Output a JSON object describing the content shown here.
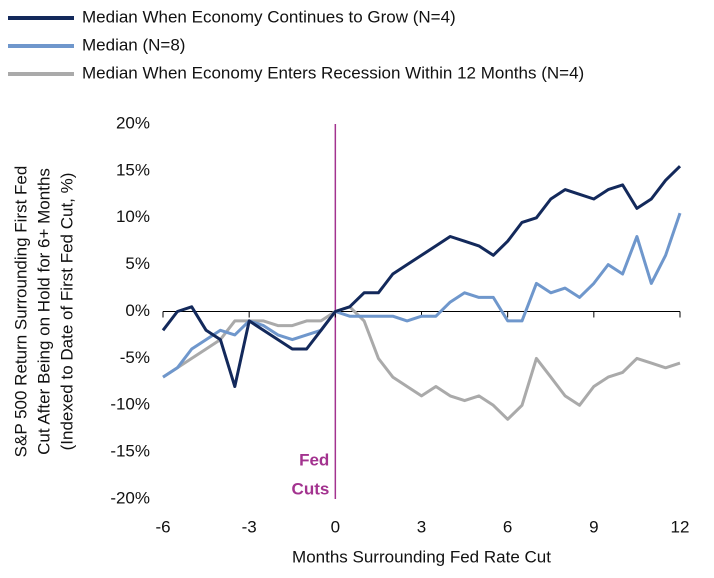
{
  "chart_data": {
    "type": "line",
    "xlabel": "Months Surrounding Fed Rate Cut",
    "ylabel": [
      "S&P 500 Return Surrounding First Fed",
      "Cut After Being on Hold for 6+ Months",
      "(Indexed to Date of First Fed Cut, %)"
    ],
    "annotation": {
      "x": 0,
      "lines": [
        "Fed",
        "Cuts"
      ],
      "color": "#a3338f"
    },
    "x": [
      -6,
      -5.5,
      -5,
      -4.5,
      -4,
      -3.5,
      -3,
      -2.5,
      -2,
      -1.5,
      -1,
      -0.5,
      0,
      0.5,
      1,
      1.5,
      2,
      2.5,
      3,
      3.5,
      4,
      4.5,
      5,
      5.5,
      6,
      6.5,
      7,
      7.5,
      8,
      8.5,
      9,
      9.5,
      10,
      10.5,
      11,
      11.5,
      12
    ],
    "series": [
      {
        "name": "Median When Economy Continues to Grow (N=4)",
        "color": "#13295b",
        "values": [
          -2,
          0,
          0.5,
          -2,
          -3,
          -8,
          -1,
          -2,
          -3,
          -4,
          -4,
          -2,
          0,
          0.5,
          2,
          2,
          4,
          5,
          6,
          7,
          8,
          7.5,
          7,
          6,
          7.5,
          9.5,
          10,
          12,
          13,
          12.5,
          12,
          13,
          13.5,
          11,
          12,
          14,
          15.5
        ]
      },
      {
        "name": "Median (N=8)",
        "color": "#6f97cc",
        "values": [
          -7,
          -6,
          -4,
          -3,
          -2,
          -2.5,
          -1,
          -1.5,
          -2.5,
          -3,
          -2.5,
          -2,
          0,
          -0.5,
          -0.5,
          -0.5,
          -0.5,
          -1,
          -0.5,
          -0.5,
          1,
          2,
          1.5,
          1.5,
          -1,
          -1,
          3,
          2,
          2.5,
          1.5,
          3,
          5,
          4,
          8,
          3,
          6,
          10.5
        ]
      },
      {
        "name": "Median When Economy Enters Recession Within 12 Months (N=4)",
        "color": "#aaaaaa",
        "values": [
          -7,
          -6,
          -5,
          -4,
          -3,
          -1,
          -1,
          -1,
          -1.5,
          -1.5,
          -1,
          -1,
          0,
          0.5,
          -1,
          -5,
          -7,
          -8,
          -9,
          -8,
          -9,
          -9.5,
          -9,
          -10,
          -11.5,
          -10,
          -5,
          -7,
          -9,
          -10,
          -8,
          -7,
          -6.5,
          -5,
          -5.5,
          -6,
          -5.5
        ]
      }
    ],
    "xlim": [
      -6,
      12
    ],
    "xticks": [
      -6,
      -3,
      0,
      3,
      6,
      9,
      12
    ],
    "ylim": [
      -20,
      20
    ],
    "yticks": [
      {
        "value": -20,
        "label": "-20%"
      },
      {
        "value": -15,
        "label": "-15%"
      },
      {
        "value": -10,
        "label": "-10%"
      },
      {
        "value": -5,
        "label": "-5%"
      },
      {
        "value": 0,
        "label": "0%"
      },
      {
        "value": 5,
        "label": "5%"
      },
      {
        "value": 10,
        "label": "10%"
      },
      {
        "value": 15,
        "label": "15%"
      },
      {
        "value": 20,
        "label": "20%"
      }
    ],
    "grid": false
  }
}
